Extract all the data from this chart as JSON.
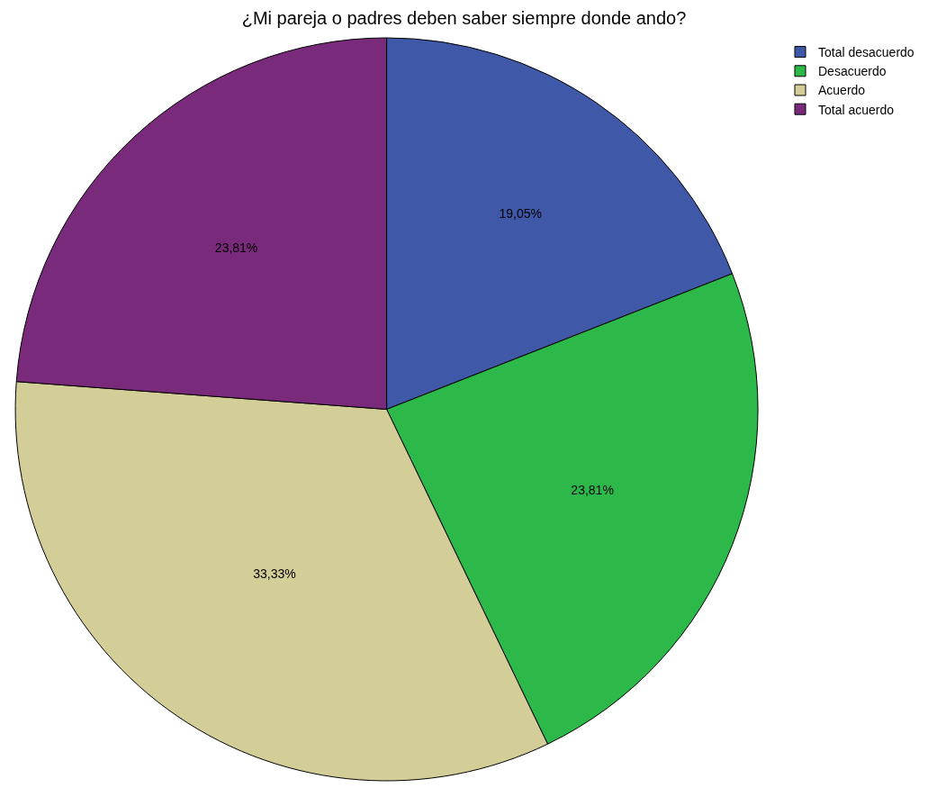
{
  "chart_data": {
    "type": "pie",
    "title": "¿Mi pareja o padres deben saber siempre donde ando?",
    "categories": [
      "Total desacuerdo",
      "Desacuerdo",
      "Acuerdo",
      "Total acuerdo"
    ],
    "values": [
      19.05,
      23.81,
      33.33,
      23.81
    ],
    "colors": [
      "#3f58a8",
      "#2db84a",
      "#d3ce98",
      "#7a2a7a"
    ],
    "value_labels": [
      "19,05%",
      "23,81%",
      "33,33%",
      "23,81%"
    ],
    "legend": "top right"
  }
}
